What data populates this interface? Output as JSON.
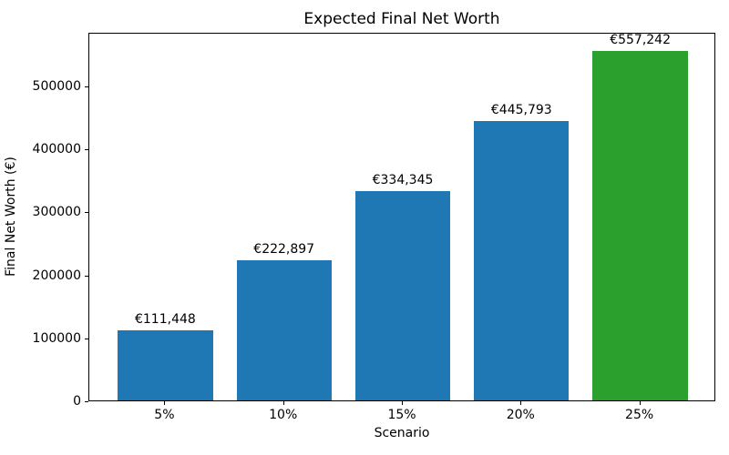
{
  "chart_data": {
    "type": "bar",
    "title": "Expected Final Net Worth",
    "xlabel": "Scenario",
    "ylabel": "Final Net Worth (€)",
    "categories": [
      "5%",
      "10%",
      "15%",
      "20%",
      "25%"
    ],
    "values": [
      111448,
      222897,
      334345,
      445793,
      557242
    ],
    "bar_value_labels": [
      "€111,448",
      "€222,897",
      "€334,345",
      "€445,793",
      "€557,242"
    ],
    "bar_colors": [
      "#1f77b4",
      "#1f77b4",
      "#1f77b4",
      "#1f77b4",
      "#2ca02c"
    ],
    "highlight_color": "#2ca02c",
    "default_bar_color": "#1f77b4",
    "ylim": [
      0,
      585104
    ],
    "yticks": [
      0,
      100000,
      200000,
      300000,
      400000,
      500000
    ],
    "ytick_labels": [
      "0",
      "100000",
      "200000",
      "300000",
      "400000",
      "500000"
    ],
    "grid": false,
    "legend": "none",
    "axis_color": "#000000",
    "background_color": "#ffffff"
  }
}
